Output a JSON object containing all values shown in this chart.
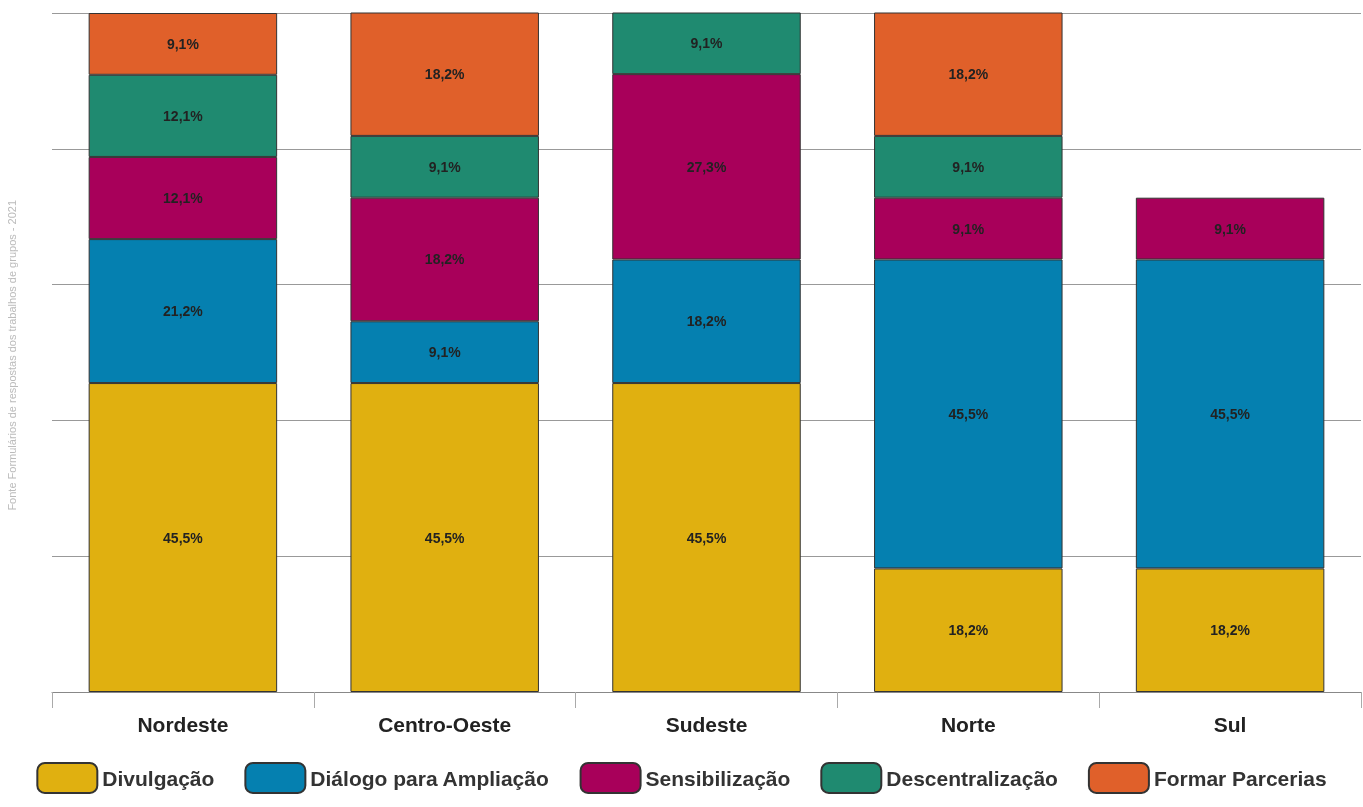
{
  "chart_data": {
    "type": "bar",
    "stacked": true,
    "categories": [
      "Nordeste",
      "Centro-Oeste",
      "Sudeste",
      "Norte",
      "Sul"
    ],
    "series": [
      {
        "name": "Divulgação",
        "color": "#e0b010",
        "values": [
          45.5,
          45.5,
          45.5,
          18.2,
          18.2
        ],
        "value_labels": [
          "45,5%",
          "45,5%",
          "45,5%",
          "18,2%",
          "18,2%"
        ]
      },
      {
        "name": "Diálogo para Ampliação",
        "color": "#0580b0",
        "values": [
          21.2,
          9.1,
          18.2,
          45.5,
          45.5
        ],
        "value_labels": [
          "21,2%",
          "9,1%",
          "18,2%",
          "45,5%",
          "45,5%"
        ]
      },
      {
        "name": "Sensibilização",
        "color": "#a8005a",
        "values": [
          12.1,
          18.2,
          27.3,
          9.1,
          9.1
        ],
        "value_labels": [
          "12,1%",
          "18,2%",
          "27,3%",
          "9,1%",
          "9,1%"
        ]
      },
      {
        "name": "Descentralização",
        "color": "#1f8a70",
        "values": [
          12.1,
          9.1,
          9.1,
          9.1,
          null
        ],
        "value_labels": [
          "12,1%",
          "9,1%",
          "9,1%",
          "9,1%",
          null
        ]
      },
      {
        "name": "Formar Parcerias",
        "color": "#e0602a",
        "values": [
          9.1,
          18.2,
          null,
          18.2,
          null
        ],
        "value_labels": [
          "9,1%",
          "18,2%",
          null,
          "18,2%",
          null
        ]
      }
    ],
    "ylim": [
      0,
      100
    ],
    "yticks": [
      {
        "value": 0,
        "label": null
      },
      {
        "value": 20,
        "label": null
      },
      {
        "value": 40,
        "label": null
      },
      {
        "value": 60,
        "label": null
      },
      {
        "value": 80,
        "label": null
      },
      {
        "value": 100,
        "label": null
      }
    ],
    "grid": "y",
    "tick_labels": "x",
    "legend": "bottom",
    "annotations": [
      "Fonte Formulários de respostas dos trabalhos de grupos - 2021"
    ]
  }
}
